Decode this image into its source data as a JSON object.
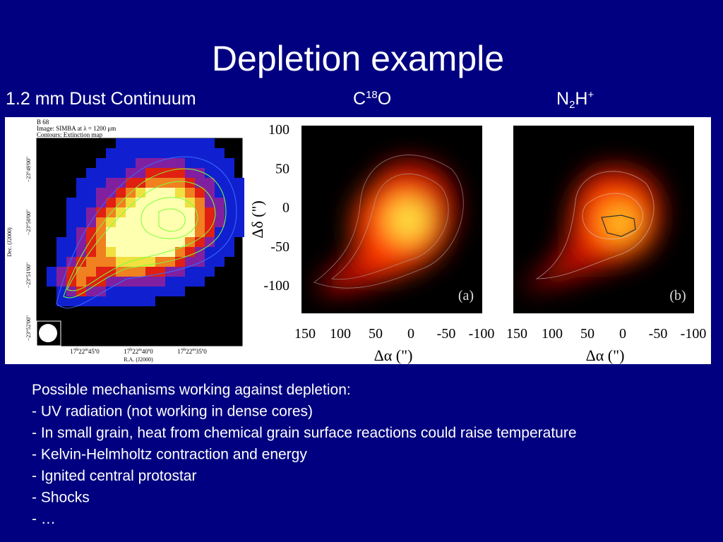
{
  "slide": {
    "title": "Depletion example",
    "panel_labels": [
      {
        "parts": [
          "1.2 mm Dust Continuum"
        ]
      },
      {
        "parts": [
          "C",
          "18",
          "O"
        ]
      },
      {
        "parts": [
          "N",
          "2",
          "H",
          "+"
        ]
      }
    ],
    "left_figure": {
      "header": [
        "B 68",
        "Image: SIMBA at λ = 1200 μm",
        "Contours: Extinction map"
      ],
      "y_label": "Dec. (J2000)",
      "y_ticks": [
        "−23°49'00\"",
        "−23°50'00\"",
        "−23°51'00\"",
        "−23°52'00\""
      ],
      "x_ticks": [
        [
          "17",
          "h",
          "22",
          "m",
          "45",
          "s",
          "0"
        ],
        [
          "17",
          "h",
          "22",
          "m",
          "40",
          "s",
          "0"
        ],
        [
          "17",
          "h",
          "22",
          "m",
          "35",
          "s",
          "0"
        ]
      ],
      "x_label": "R.A. (J2000)"
    },
    "right_figure": {
      "y_label": "Δδ (\")",
      "y_ticks": [
        "100",
        "50",
        "0",
        "-50",
        "-100"
      ],
      "x_ticks": [
        "150",
        "100",
        "50",
        "0",
        "-50",
        "-100"
      ],
      "x_label": "Δα (\")",
      "panel_tags": [
        "(a)",
        "(b)"
      ]
    },
    "bullets": [
      "Possible mechanisms working against depletion:",
      "- UV radiation (not working in dense cores)",
      "- In small grain, heat from chemical grain surface reactions could raise temperature",
      "- Kelvin-Helmholtz contraction and energy",
      "- Ignited central protostar",
      "- Shocks",
      "- …"
    ]
  }
}
